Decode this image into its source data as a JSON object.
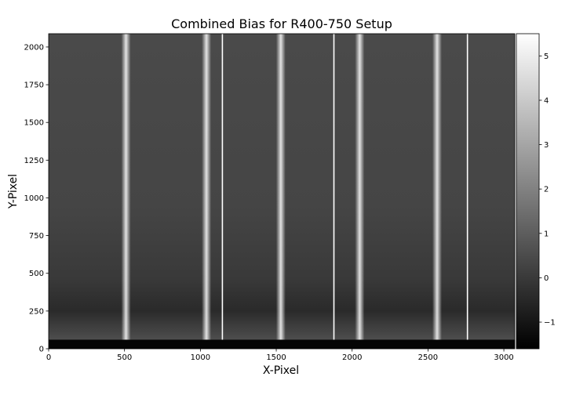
{
  "chart_data": {
    "type": "heatmap",
    "title": "Combined Bias for R400-750 Setup",
    "xlabel": "X-Pixel",
    "ylabel": "Y-Pixel",
    "xlim": [
      0,
      3072
    ],
    "ylim": [
      0,
      2088
    ],
    "x_ticks": [
      0,
      500,
      1000,
      1500,
      2000,
      2500,
      3000
    ],
    "y_ticks": [
      0,
      250,
      500,
      750,
      1000,
      1250,
      1500,
      1750,
      2000
    ],
    "colormap": "gray",
    "colorbar": {
      "range": [
        -1.6,
        5.5
      ],
      "ticks": [
        -1,
        0,
        1,
        2,
        3,
        4,
        5
      ]
    },
    "bright_columns": [
      510,
      1040,
      1530,
      2050,
      2560
    ],
    "saturated_columns": [
      1145,
      1880,
      2760
    ],
    "dark_row_band": [
      0,
      60
    ],
    "grid": false
  }
}
